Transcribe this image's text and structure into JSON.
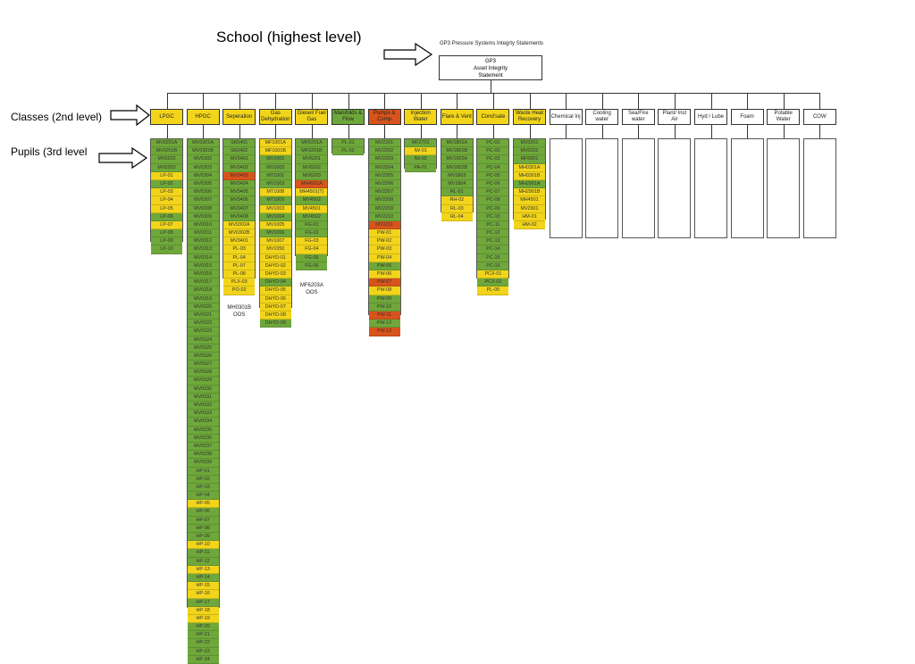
{
  "labels": {
    "school": "School (highest level)",
    "classes": "Classes (2nd level)",
    "pupils": "Pupils (3rd level"
  },
  "root": {
    "title": "GP3 Pressure Systems Integrty Statements",
    "box_line1": "GP3",
    "box_line2": "Asset Integrity",
    "box_line3": "Statement"
  },
  "colors": {
    "green": "#6fa83a",
    "yellow": "#f2d51a",
    "red": "#d8541c",
    "white": "#ffffff",
    "line": "#333333"
  },
  "classes": [
    {
      "name": "LPGC",
      "status": "yellow",
      "items": [
        [
          "MV0201A",
          "green"
        ],
        [
          "MV0201B",
          "green"
        ],
        [
          "MV0202",
          "green"
        ],
        [
          "MV0203",
          "green"
        ],
        [
          "LP-01",
          "yellow"
        ],
        [
          "LP-02",
          "green"
        ],
        [
          "LP-03",
          "yellow"
        ],
        [
          "LP-04",
          "yellow"
        ],
        [
          "LP-05",
          "yellow"
        ],
        [
          "LP-06",
          "green"
        ],
        [
          "LP-07",
          "yellow"
        ],
        [
          "LP-08",
          "green"
        ],
        [
          "LP-09",
          "green"
        ],
        [
          "LP-10",
          "green"
        ]
      ]
    },
    {
      "name": "HPGC",
      "status": "yellow",
      "items": [
        [
          "MV0301A",
          "green"
        ],
        [
          "MV0301B",
          "green"
        ],
        [
          "MV0302",
          "green"
        ],
        [
          "MV0303",
          "green"
        ],
        [
          "MV0304",
          "green"
        ],
        [
          "MV0305",
          "green"
        ],
        [
          "MV0306",
          "green"
        ],
        [
          "MV0307",
          "green"
        ],
        [
          "MV0308",
          "green"
        ],
        [
          "MV0309",
          "green"
        ],
        [
          "MV0310",
          "green"
        ],
        [
          "MV0311",
          "green"
        ],
        [
          "MV0312",
          "green"
        ],
        [
          "MV0313",
          "green"
        ],
        [
          "MV0314",
          "green"
        ],
        [
          "MV0315",
          "green"
        ],
        [
          "MV0316",
          "green"
        ],
        [
          "MV0317",
          "green"
        ],
        [
          "MV0318",
          "green"
        ],
        [
          "MV0319",
          "green"
        ],
        [
          "MV0320",
          "green"
        ],
        [
          "MV0321",
          "green"
        ],
        [
          "MV0322",
          "green"
        ],
        [
          "MV0323",
          "green"
        ],
        [
          "MV0324",
          "green"
        ],
        [
          "MV0325",
          "green"
        ],
        [
          "MV0326",
          "green"
        ],
        [
          "MV0327",
          "green"
        ],
        [
          "MV0328",
          "green"
        ],
        [
          "MV0329",
          "green"
        ],
        [
          "MV0330",
          "green"
        ],
        [
          "MV0331",
          "green"
        ],
        [
          "MV0332",
          "green"
        ],
        [
          "MV0333",
          "green"
        ],
        [
          "MV0334",
          "green"
        ],
        [
          "MV0335",
          "green"
        ],
        [
          "MV0336",
          "green"
        ],
        [
          "MV0337",
          "green"
        ],
        [
          "MV0338",
          "green"
        ],
        [
          "MV0339",
          "green"
        ],
        [
          "HP-01",
          "green"
        ],
        [
          "HP-02",
          "green"
        ],
        [
          "HP-03",
          "green"
        ],
        [
          "HP-04",
          "green"
        ],
        [
          "HP-05",
          "yellow"
        ],
        [
          "HP-06",
          "green"
        ],
        [
          "HP-07",
          "green"
        ],
        [
          "HP-08",
          "green"
        ],
        [
          "HP-09",
          "green"
        ],
        [
          "HP-10",
          "yellow"
        ],
        [
          "HP-11",
          "green"
        ],
        [
          "HP-12",
          "green"
        ],
        [
          "HP-13",
          "yellow"
        ],
        [
          "HP-14",
          "green"
        ],
        [
          "HP-15",
          "yellow"
        ],
        [
          "HP-16",
          "yellow"
        ],
        [
          "HP-17",
          "green"
        ],
        [
          "HP-18",
          "yellow"
        ],
        [
          "HP-19",
          "yellow"
        ],
        [
          "HP-20",
          "green"
        ],
        [
          "HP-21",
          "green"
        ],
        [
          "HP-22",
          "green"
        ],
        [
          "HP-23",
          "green"
        ],
        [
          "HP-24",
          "green"
        ]
      ]
    },
    {
      "name": "Seperation",
      "status": "yellow",
      "items": [
        [
          "SK0401",
          "green"
        ],
        [
          "SK0402",
          "green"
        ],
        [
          "MV0401",
          "green"
        ],
        [
          "MV0402",
          "green"
        ],
        [
          "MV0403",
          "red"
        ],
        [
          "MV0404",
          "green"
        ],
        [
          "MV0405",
          "green"
        ],
        [
          "MV0406",
          "green"
        ],
        [
          "MV0407",
          "green"
        ],
        [
          "MV0408",
          "green"
        ],
        [
          "MV0302A",
          "yellow"
        ],
        [
          "MV0302B",
          "yellow"
        ],
        [
          "MV0401",
          "yellow"
        ],
        [
          "PL-03",
          "yellow"
        ],
        [
          "PL-04",
          "yellow"
        ],
        [
          "PL-07",
          "yellow"
        ],
        [
          "PL-08",
          "yellow"
        ],
        [
          "PLX-03",
          "yellow"
        ],
        [
          "PO-02",
          "yellow"
        ]
      ]
    },
    {
      "name": "Gas Dehydration",
      "status": "yellow",
      "items": [
        [
          "MF1001A",
          "yellow"
        ],
        [
          "MF1001B",
          "yellow"
        ],
        [
          "MV1001",
          "green"
        ],
        [
          "MV1002",
          "green"
        ],
        [
          "MT1001",
          "green"
        ],
        [
          "MV1003",
          "green"
        ],
        [
          "MT1008",
          "yellow"
        ],
        [
          "MT1009",
          "green"
        ],
        [
          "MV1003",
          "yellow"
        ],
        [
          "MV1004",
          "green"
        ],
        [
          "MV1005",
          "yellow"
        ],
        [
          "MV1006",
          "green"
        ],
        [
          "MV1007",
          "yellow"
        ],
        [
          "MV1050",
          "yellow"
        ],
        [
          "DHYD-01",
          "yellow"
        ],
        [
          "DHYD-02",
          "yellow"
        ],
        [
          "DHYD-03",
          "yellow"
        ],
        [
          "DHYD-04",
          "green"
        ],
        [
          "DHYD-05",
          "yellow"
        ],
        [
          "DHYD-06",
          "yellow"
        ],
        [
          "DHYD-07",
          "yellow"
        ],
        [
          "DHYD-08",
          "yellow"
        ],
        [
          "DHYD-09",
          "green"
        ]
      ]
    },
    {
      "name": "Diesel/ Fuel Gas",
      "status": "yellow",
      "items": [
        [
          "MF6201A",
          "green"
        ],
        [
          "MF6201B",
          "green"
        ],
        [
          "MV6201",
          "green"
        ],
        [
          "MV6202",
          "green"
        ],
        [
          "MV6203",
          "green"
        ],
        [
          "MH4501A",
          "red"
        ],
        [
          "MH4501(T)",
          "yellow"
        ],
        [
          "MV4502",
          "green"
        ],
        [
          "MV4501",
          "yellow"
        ],
        [
          "MV4502",
          "green"
        ],
        [
          "FG-01",
          "green"
        ],
        [
          "FG-02",
          "green"
        ],
        [
          "FG-03",
          "yellow"
        ],
        [
          "FG-04",
          "yellow"
        ],
        [
          "FG-05",
          "green"
        ],
        [
          "FG-06",
          "green"
        ]
      ]
    },
    {
      "name": "Manifolds & Flow",
      "status": "green",
      "items": [
        [
          "PL-01",
          "green"
        ],
        [
          "PL-02",
          "green"
        ]
      ]
    },
    {
      "name": "Pumps & Comp",
      "status": "red",
      "items": [
        [
          "MV2201",
          "green"
        ],
        [
          "MV2202",
          "green"
        ],
        [
          "MV2203",
          "green"
        ],
        [
          "MV2204",
          "green"
        ],
        [
          "MV2205",
          "green"
        ],
        [
          "MV2206",
          "green"
        ],
        [
          "MV2207",
          "green"
        ],
        [
          "MV2208",
          "green"
        ],
        [
          "MV2209",
          "green"
        ],
        [
          "MV2210",
          "green"
        ],
        [
          "MV2211",
          "red"
        ],
        [
          "PW-01",
          "yellow"
        ],
        [
          "PW-02",
          "yellow"
        ],
        [
          "PW-03",
          "yellow"
        ],
        [
          "PW-04",
          "yellow"
        ],
        [
          "PW-05",
          "green"
        ],
        [
          "PW-06",
          "yellow"
        ],
        [
          "PW-07",
          "red"
        ],
        [
          "PW-08",
          "yellow"
        ],
        [
          "PW-09",
          "green"
        ],
        [
          "PW-10",
          "green"
        ],
        [
          "PW-11",
          "red"
        ],
        [
          "PW-12",
          "green"
        ],
        [
          "PW-13",
          "red"
        ]
      ]
    },
    {
      "name": "Injection Water",
      "status": "yellow",
      "items": [
        [
          "MF2701",
          "green"
        ],
        [
          "IW-01",
          "yellow"
        ],
        [
          "IW-02",
          "green"
        ],
        [
          "PA-01",
          "green"
        ]
      ]
    },
    {
      "name": "Flare & Vent",
      "status": "yellow",
      "items": [
        [
          "MV1801A",
          "green"
        ],
        [
          "MV1801B",
          "green"
        ],
        [
          "MV1802A",
          "green"
        ],
        [
          "MV1802B",
          "green"
        ],
        [
          "MV1803",
          "green"
        ],
        [
          "MV1804",
          "green"
        ],
        [
          "RL-01",
          "green"
        ],
        [
          "RH-02",
          "yellow"
        ],
        [
          "RL-03",
          "yellow"
        ],
        [
          "RL-04",
          "yellow"
        ]
      ]
    },
    {
      "name": "Cond'sate",
      "status": "yellow",
      "items": [
        [
          "PC-01",
          "green"
        ],
        [
          "PC-02",
          "green"
        ],
        [
          "PC-03",
          "green"
        ],
        [
          "PC-04",
          "green"
        ],
        [
          "PC-05",
          "green"
        ],
        [
          "PC-06",
          "green"
        ],
        [
          "PC-07",
          "green"
        ],
        [
          "PC-08",
          "green"
        ],
        [
          "PC-09",
          "green"
        ],
        [
          "PC-10",
          "green"
        ],
        [
          "PC-11",
          "green"
        ],
        [
          "PC-12",
          "green"
        ],
        [
          "PC-13",
          "green"
        ],
        [
          "PC-14",
          "green"
        ],
        [
          "PC-15",
          "green"
        ],
        [
          "PC-16",
          "green"
        ],
        [
          "PCX-01",
          "yellow"
        ],
        [
          "PCX-02",
          "green"
        ],
        [
          "PL-05",
          "yellow"
        ]
      ]
    },
    {
      "name": "Waste Heat Recovery",
      "status": "yellow",
      "items": [
        [
          "MV0201",
          "green"
        ],
        [
          "MV0202",
          "green"
        ],
        [
          "MF0001",
          "green"
        ],
        [
          "MH0301A",
          "yellow"
        ],
        [
          "MH0301B",
          "yellow"
        ],
        [
          "MH2901A",
          "green"
        ],
        [
          "MH2901B",
          "yellow"
        ],
        [
          "MH4501",
          "yellow"
        ],
        [
          "MV2901",
          "yellow"
        ],
        [
          "HM-01",
          "yellow"
        ],
        [
          "HM-02",
          "yellow"
        ]
      ]
    },
    {
      "name": "Chemical Inj",
      "status": "white",
      "items": []
    },
    {
      "name": "Cooling water",
      "status": "white",
      "items": []
    },
    {
      "name": "Sea/Fire water",
      "status": "white",
      "items": []
    },
    {
      "name": "Plant/ Inst Air",
      "status": "white",
      "items": []
    },
    {
      "name": "Hyd / Lube",
      "status": "white",
      "items": []
    },
    {
      "name": "Foam",
      "status": "white",
      "items": []
    },
    {
      "name": "Potable Water",
      "status": "white",
      "items": []
    },
    {
      "name": "COW",
      "status": "white",
      "items": []
    }
  ],
  "notes": [
    {
      "column": 2,
      "line1": "MH0301B",
      "line2": "OOS"
    },
    {
      "column": 4,
      "line1": "MF6203A",
      "line2": "OOS"
    }
  ]
}
